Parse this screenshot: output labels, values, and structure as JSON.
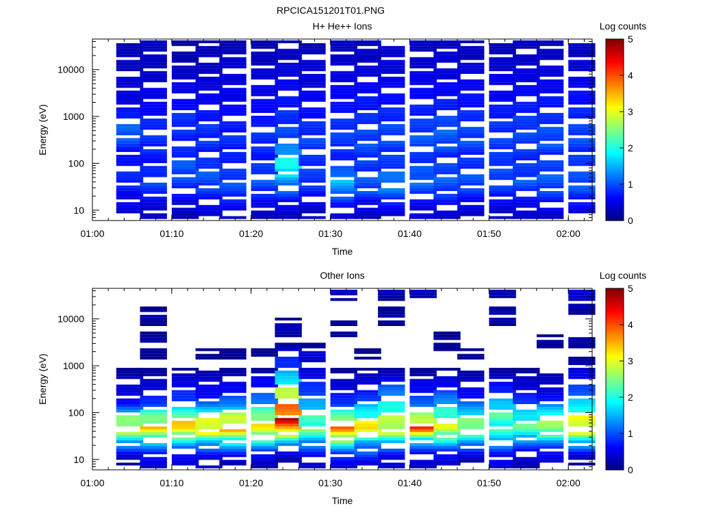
{
  "figure": {
    "title": "RPCICA151201T01.PNG"
  },
  "chart_data": [
    {
      "type": "heatmap",
      "title": "H+ He++ Ions",
      "xlabel": "Time",
      "ylabel": "Energy (eV)",
      "x_ticks": [
        "01:00",
        "01:10",
        "01:20",
        "01:30",
        "01:40",
        "01:50",
        "02:00"
      ],
      "xlim": [
        "01:00",
        "02:03"
      ],
      "y_scale": "log",
      "y_ticks": [
        "10",
        "100",
        "1000",
        "10000"
      ],
      "ylim": [
        6,
        45000
      ],
      "colorbar": {
        "label": "Log counts",
        "range": [
          0,
          5
        ],
        "ticks": [
          "0",
          "1",
          "2",
          "3",
          "4",
          "5"
        ]
      },
      "time_bins": [
        "01:03",
        "01:06",
        "01:10",
        "01:13",
        "01:16",
        "01:20",
        "01:23",
        "01:26",
        "01:30",
        "01:33",
        "01:36",
        "01:40",
        "01:43",
        "01:46",
        "01:50",
        "01:53",
        "01:56",
        "02:00"
      ],
      "energy_profile": [
        [
          0.4,
          0.5,
          0.6,
          0.8,
          0.7,
          0.6,
          0.9,
          1.1,
          0.8,
          0.5,
          0.4,
          0.4,
          0.3,
          0.3,
          0.2
        ],
        [
          0.3,
          0.4,
          0.8,
          0.9,
          0.7,
          0.7,
          0.8,
          0.8,
          0.7,
          0.5,
          0.5,
          0.4,
          0.3,
          0.3,
          0.3
        ],
        [
          0.2,
          0.4,
          0.7,
          0.9,
          1.0,
          0.8,
          0.7,
          0.8,
          0.8,
          0.6,
          0.5,
          0.4,
          0.3,
          0.2,
          0.2
        ],
        [
          0.4,
          0.5,
          0.8,
          1.0,
          0.9,
          0.7,
          0.8,
          0.8,
          0.7,
          0.6,
          0.5,
          0.4,
          0.3,
          0.3,
          0.2
        ],
        [
          0.3,
          0.6,
          0.9,
          0.9,
          0.8,
          0.7,
          0.8,
          0.7,
          0.7,
          0.5,
          0.5,
          0.4,
          0.4,
          0.3,
          0.2
        ],
        [
          0.2,
          0.5,
          0.8,
          1.0,
          0.8,
          0.7,
          0.8,
          0.8,
          0.6,
          0.6,
          0.5,
          0.5,
          0.3,
          0.3,
          0.2
        ],
        [
          0.3,
          0.5,
          1.0,
          1.3,
          2.0,
          1.5,
          1.0,
          0.9,
          0.8,
          0.7,
          0.6,
          0.5,
          0.4,
          0.3,
          0.3
        ],
        [
          0.3,
          0.4,
          0.7,
          0.9,
          0.8,
          0.8,
          0.9,
          0.8,
          0.7,
          0.6,
          0.5,
          0.4,
          0.4,
          0.3,
          0.2
        ],
        [
          0.4,
          0.6,
          1.2,
          1.4,
          0.9,
          0.7,
          0.9,
          0.8,
          0.8,
          0.6,
          0.6,
          0.5,
          0.4,
          0.3,
          0.3
        ],
        [
          0.3,
          0.5,
          0.9,
          1.0,
          0.8,
          0.9,
          0.9,
          0.9,
          0.8,
          0.7,
          0.6,
          0.5,
          0.4,
          0.3,
          0.3
        ],
        [
          0.4,
          0.6,
          1.1,
          1.2,
          0.9,
          0.8,
          0.9,
          0.9,
          0.8,
          0.7,
          0.6,
          0.5,
          0.4,
          0.4,
          0.3
        ],
        [
          0.4,
          0.5,
          0.9,
          1.1,
          0.9,
          0.8,
          1.0,
          0.9,
          0.8,
          0.7,
          0.6,
          0.5,
          0.4,
          0.3,
          0.3
        ],
        [
          0.3,
          0.6,
          0.9,
          1.0,
          0.9,
          0.8,
          1.0,
          1.0,
          0.9,
          0.7,
          0.6,
          0.5,
          0.4,
          0.4,
          0.3
        ],
        [
          0.3,
          0.5,
          0.8,
          1.0,
          0.8,
          0.8,
          0.9,
          0.9,
          0.8,
          0.7,
          0.6,
          0.5,
          0.4,
          0.3,
          0.3
        ],
        [
          0.3,
          0.5,
          0.8,
          0.9,
          0.9,
          0.8,
          0.9,
          0.8,
          0.8,
          0.6,
          0.5,
          0.5,
          0.4,
          0.3,
          0.2
        ],
        [
          0.3,
          0.5,
          0.8,
          1.0,
          0.8,
          0.8,
          0.9,
          0.9,
          0.8,
          0.7,
          0.6,
          0.5,
          0.4,
          0.3,
          0.3
        ],
        [
          0.3,
          0.6,
          0.9,
          1.0,
          0.9,
          0.8,
          1.0,
          0.9,
          0.8,
          0.7,
          0.6,
          0.5,
          0.4,
          0.3,
          0.3
        ],
        [
          0.4,
          0.6,
          0.9,
          1.0,
          0.9,
          0.8,
          0.9,
          0.9,
          0.8,
          0.7,
          0.6,
          0.5,
          0.4,
          0.3,
          0.3
        ]
      ]
    },
    {
      "type": "heatmap",
      "title": "Other Ions",
      "xlabel": "Time",
      "ylabel": "Energy (eV)",
      "x_ticks": [
        "01:00",
        "01:10",
        "01:20",
        "01:30",
        "01:40",
        "01:50",
        "02:00"
      ],
      "xlim": [
        "01:00",
        "02:03"
      ],
      "y_scale": "log",
      "y_ticks": [
        "10",
        "100",
        "1000",
        "10000"
      ],
      "ylim": [
        6,
        45000
      ],
      "colorbar": {
        "label": "Log counts",
        "range": [
          0,
          5
        ],
        "ticks": [
          "0",
          "1",
          "2",
          "3",
          "4",
          "5"
        ]
      },
      "time_bins": [
        "01:03",
        "01:06",
        "01:10",
        "01:13",
        "01:16",
        "01:20",
        "01:23",
        "01:26",
        "01:30",
        "01:33",
        "01:36",
        "01:40",
        "01:43",
        "01:46",
        "01:50",
        "01:53",
        "01:56",
        "02:00"
      ],
      "energy_profile": [
        [
          0.0,
          0.5,
          1.5,
          2.9,
          2.2,
          0.6,
          0.4,
          0.3,
          0.0,
          0.0,
          0.0,
          0.0,
          0.0,
          0.0,
          0.0
        ],
        [
          0.3,
          0.7,
          1.6,
          3.1,
          2.4,
          0.9,
          0.5,
          0.3,
          0.0,
          0.1,
          0.2,
          0.0,
          0.2,
          0.0,
          0.0
        ],
        [
          0.4,
          0.6,
          1.7,
          3.3,
          2.6,
          1.0,
          0.7,
          0.4,
          0.0,
          0.0,
          0.0,
          0.0,
          0.0,
          0.0,
          0.0
        ],
        [
          0.3,
          0.6,
          1.6,
          3.2,
          2.5,
          1.0,
          0.5,
          0.4,
          0.0,
          0.1,
          0.0,
          0.0,
          0.0,
          0.0,
          0.0
        ],
        [
          0.0,
          0.7,
          1.8,
          3.3,
          2.7,
          1.2,
          0.6,
          0.4,
          0.0,
          0.1,
          0.0,
          0.0,
          0.0,
          0.0,
          0.0
        ],
        [
          0.2,
          0.6,
          1.9,
          3.0,
          2.6,
          1.4,
          0.8,
          0.5,
          0.0,
          0.1,
          0.0,
          0.0,
          0.0,
          0.0,
          0.0
        ],
        [
          0.0,
          0.4,
          1.6,
          3.6,
          4.2,
          3.4,
          2.6,
          1.7,
          0.9,
          0.6,
          0.0,
          0.3,
          0.0,
          0.0,
          0.0
        ],
        [
          0.3,
          0.6,
          1.4,
          2.3,
          2.0,
          1.4,
          0.9,
          0.6,
          0.3,
          0.4,
          0.0,
          0.0,
          0.0,
          0.0,
          0.0
        ],
        [
          0.4,
          0.8,
          2.2,
          3.6,
          2.4,
          0.9,
          0.5,
          0.3,
          0.0,
          0.0,
          0.0,
          0.2,
          0.0,
          0.0,
          0.4
        ],
        [
          0.3,
          0.9,
          1.4,
          3.4,
          2.2,
          1.2,
          0.6,
          0.4,
          0.0,
          0.1,
          0.0,
          0.0,
          0.0,
          0.0,
          0.0
        ],
        [
          0.3,
          0.6,
          1.6,
          3.0,
          2.4,
          1.8,
          1.2,
          0.5,
          0.0,
          0.0,
          0.0,
          0.0,
          0.2,
          0.0,
          0.3
        ],
        [
          0.3,
          0.5,
          1.5,
          3.7,
          2.6,
          1.1,
          0.6,
          0.4,
          0.0,
          0.0,
          0.0,
          0.0,
          0.0,
          0.0,
          0.4
        ],
        [
          0.3,
          0.6,
          1.7,
          2.9,
          2.2,
          1.6,
          0.8,
          0.4,
          0.0,
          0.0,
          0.2,
          0.0,
          0.0,
          0.0,
          0.0
        ],
        [
          0.0,
          0.5,
          1.4,
          2.6,
          2.1,
          1.0,
          0.5,
          0.3,
          0.0,
          0.1,
          0.0,
          0.0,
          0.0,
          0.0,
          0.0
        ],
        [
          0.4,
          0.6,
          1.5,
          2.0,
          2.1,
          1.6,
          0.8,
          0.4,
          0.0,
          0.0,
          0.0,
          0.0,
          0.3,
          0.0,
          0.3
        ],
        [
          0.2,
          0.4,
          1.2,
          2.2,
          1.8,
          1.0,
          0.5,
          0.3,
          0.0,
          0.0,
          0.0,
          0.0,
          0.0,
          0.0,
          0.0
        ],
        [
          0.4,
          0.5,
          1.3,
          2.6,
          2.3,
          1.0,
          0.4,
          0.3,
          0.0,
          0.0,
          0.1,
          0.0,
          0.0,
          0.0,
          0.0
        ],
        [
          0.0,
          0.5,
          1.6,
          3.2,
          2.7,
          1.6,
          1.0,
          0.6,
          0.3,
          0.0,
          0.2,
          0.0,
          0.0,
          0.3,
          0.4
        ]
      ]
    }
  ]
}
